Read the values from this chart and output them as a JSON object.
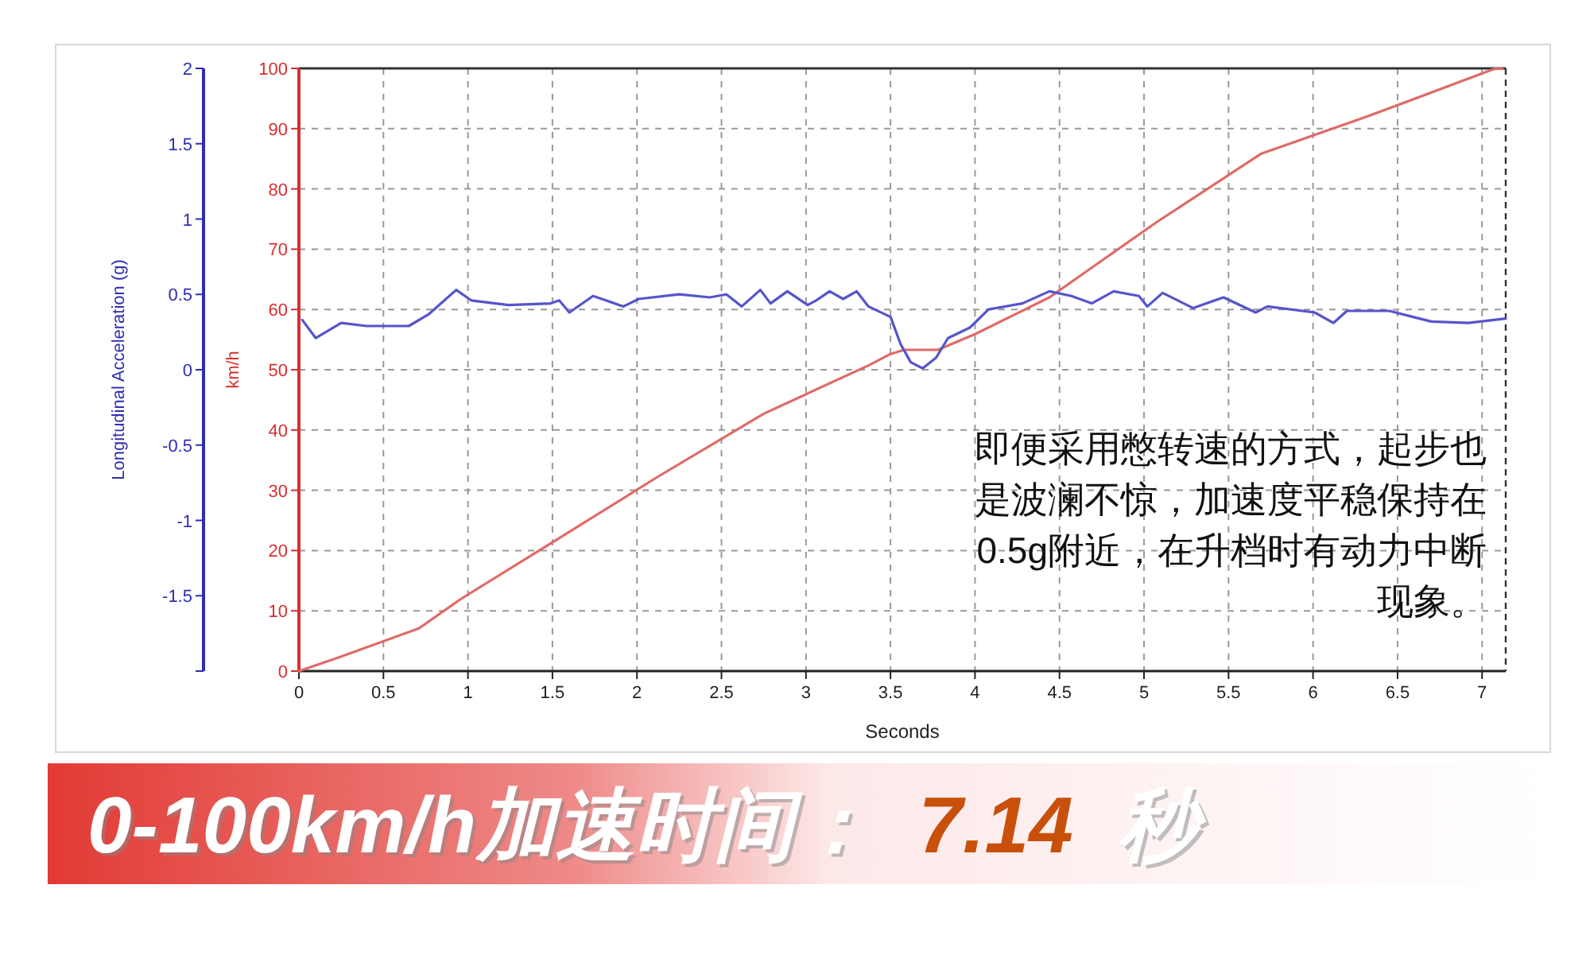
{
  "chart_data": {
    "type": "line",
    "xlabel": "Seconds",
    "ylabel": "km/h",
    "y2label": "Longitudinal Acceleration (g)",
    "xlim": [
      0,
      7.14
    ],
    "xticks": [
      0,
      0.5,
      1,
      1.5,
      2,
      2.5,
      3,
      3.5,
      4,
      4.5,
      5,
      5.5,
      6,
      6.5,
      7
    ],
    "ylim": [
      0,
      100
    ],
    "yticks": [
      0,
      10,
      20,
      30,
      40,
      50,
      60,
      70,
      80,
      90,
      100
    ],
    "y2lim": [
      -2,
      2
    ],
    "y2ticks": [
      {
        "value": -2,
        "label": null
      },
      -1.5,
      -1,
      -0.5,
      0,
      0.5,
      1,
      1.5,
      2
    ],
    "grid": true,
    "series": [
      {
        "color": "#e06a66",
        "x": [
          0,
          0.24,
          0.71,
          0.96,
          1.49,
          2.12,
          2.75,
          3.37,
          3.5,
          3.58,
          3.78,
          4.0,
          4.44,
          5.07,
          5.69,
          6.32,
          7.07,
          7.12
        ],
        "values": [
          0,
          2.3,
          7.1,
          12.0,
          21.2,
          32.2,
          42.7,
          50.7,
          52.6,
          53.3,
          53.3,
          55.9,
          62.0,
          74.4,
          85.8,
          92.0,
          99.9,
          100
        ]
      },
      {
        "color": "#5555cc",
        "axis": "y2",
        "x": [
          0.02,
          0.1,
          0.25,
          0.4,
          0.65,
          0.77,
          0.93,
          1.02,
          1.24,
          1.49,
          1.54,
          1.6,
          1.74,
          1.92,
          2.01,
          2.25,
          2.43,
          2.53,
          2.62,
          2.73,
          2.79,
          2.89,
          3.01,
          3.06,
          3.14,
          3.22,
          3.3,
          3.37,
          3.5,
          3.56,
          3.62,
          3.69,
          3.77,
          3.84,
          3.97,
          4.08,
          4.28,
          4.44,
          4.57,
          4.69,
          4.82,
          4.97,
          5.02,
          5.11,
          5.29,
          5.47,
          5.66,
          5.73,
          6.01,
          6.12,
          6.2,
          6.45,
          6.7,
          6.92,
          7.14
        ],
        "values": [
          0.33,
          0.21,
          0.31,
          0.29,
          0.29,
          0.37,
          0.53,
          0.46,
          0.43,
          0.44,
          0.46,
          0.38,
          0.49,
          0.42,
          0.47,
          0.5,
          0.48,
          0.5,
          0.42,
          0.53,
          0.44,
          0.52,
          0.43,
          0.46,
          0.52,
          0.47,
          0.52,
          0.42,
          0.35,
          0.17,
          0.05,
          0.01,
          0.08,
          0.21,
          0.28,
          0.4,
          0.44,
          0.52,
          0.49,
          0.44,
          0.52,
          0.49,
          0.42,
          0.51,
          0.41,
          0.48,
          0.38,
          0.42,
          0.38,
          0.31,
          0.39,
          0.39,
          0.32,
          0.31,
          0.34
        ]
      }
    ],
    "annotations": [
      "即便采用憋转速的方式，起步也是波澜不惊，加速度平稳保持在0.5g附近，在升档时有动力中断现象。",
      "0-100km/h加速时间：",
      "7.14",
      "秒"
    ]
  }
}
